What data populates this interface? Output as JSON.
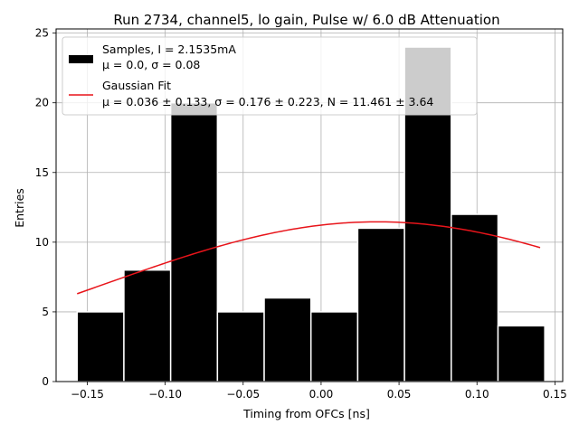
{
  "chart_data": {
    "type": "bar",
    "title": "Run 2734, channel5, lo gain, Pulse w/ 6.0 dB Attenuation",
    "xlabel": "Timing from OFCs [ns]",
    "ylabel": "Entries",
    "xlim": [
      -0.17,
      0.155
    ],
    "ylim": [
      0,
      25.3
    ],
    "grid": true,
    "x_ticks": [
      -0.15,
      -0.1,
      -0.05,
      0.0,
      0.05,
      0.1,
      0.15
    ],
    "x_tick_labels": [
      "−0.15",
      "−0.10",
      "−0.05",
      "0.00",
      "0.05",
      "0.10",
      "0.15"
    ],
    "y_ticks": [
      0,
      5,
      10,
      15,
      20,
      25
    ],
    "y_tick_labels": [
      "0",
      "5",
      "10",
      "15",
      "20",
      "25"
    ],
    "histogram": {
      "name": "Samples",
      "bin_edges": [
        -0.1565,
        -0.1265,
        -0.0965,
        -0.0665,
        -0.0365,
        -0.0065,
        0.0235,
        0.0535,
        0.0835,
        0.1135,
        0.1435
      ],
      "counts": [
        5,
        8,
        20,
        5,
        6,
        5,
        11,
        24,
        12,
        4
      ],
      "color": "#000000",
      "edge_color": "#ffffff"
    },
    "fit": {
      "name": "Gaussian Fit",
      "mu": 0.036,
      "sigma": 0.176,
      "N": 11.461,
      "x_range": [
        -0.1565,
        0.1405
      ],
      "color": "#e8141a"
    },
    "legend": {
      "position": "top-left",
      "entries": [
        {
          "kind": "patch",
          "line1": "Samples, I = 2.1535mA",
          "line2": "μ = 0.0, σ = 0.08"
        },
        {
          "kind": "line",
          "line1": "Gaussian Fit",
          "line2": "μ = 0.036 ± 0.133, σ = 0.176 ± 0.223, N = 11.461 ± 3.64"
        }
      ]
    }
  }
}
